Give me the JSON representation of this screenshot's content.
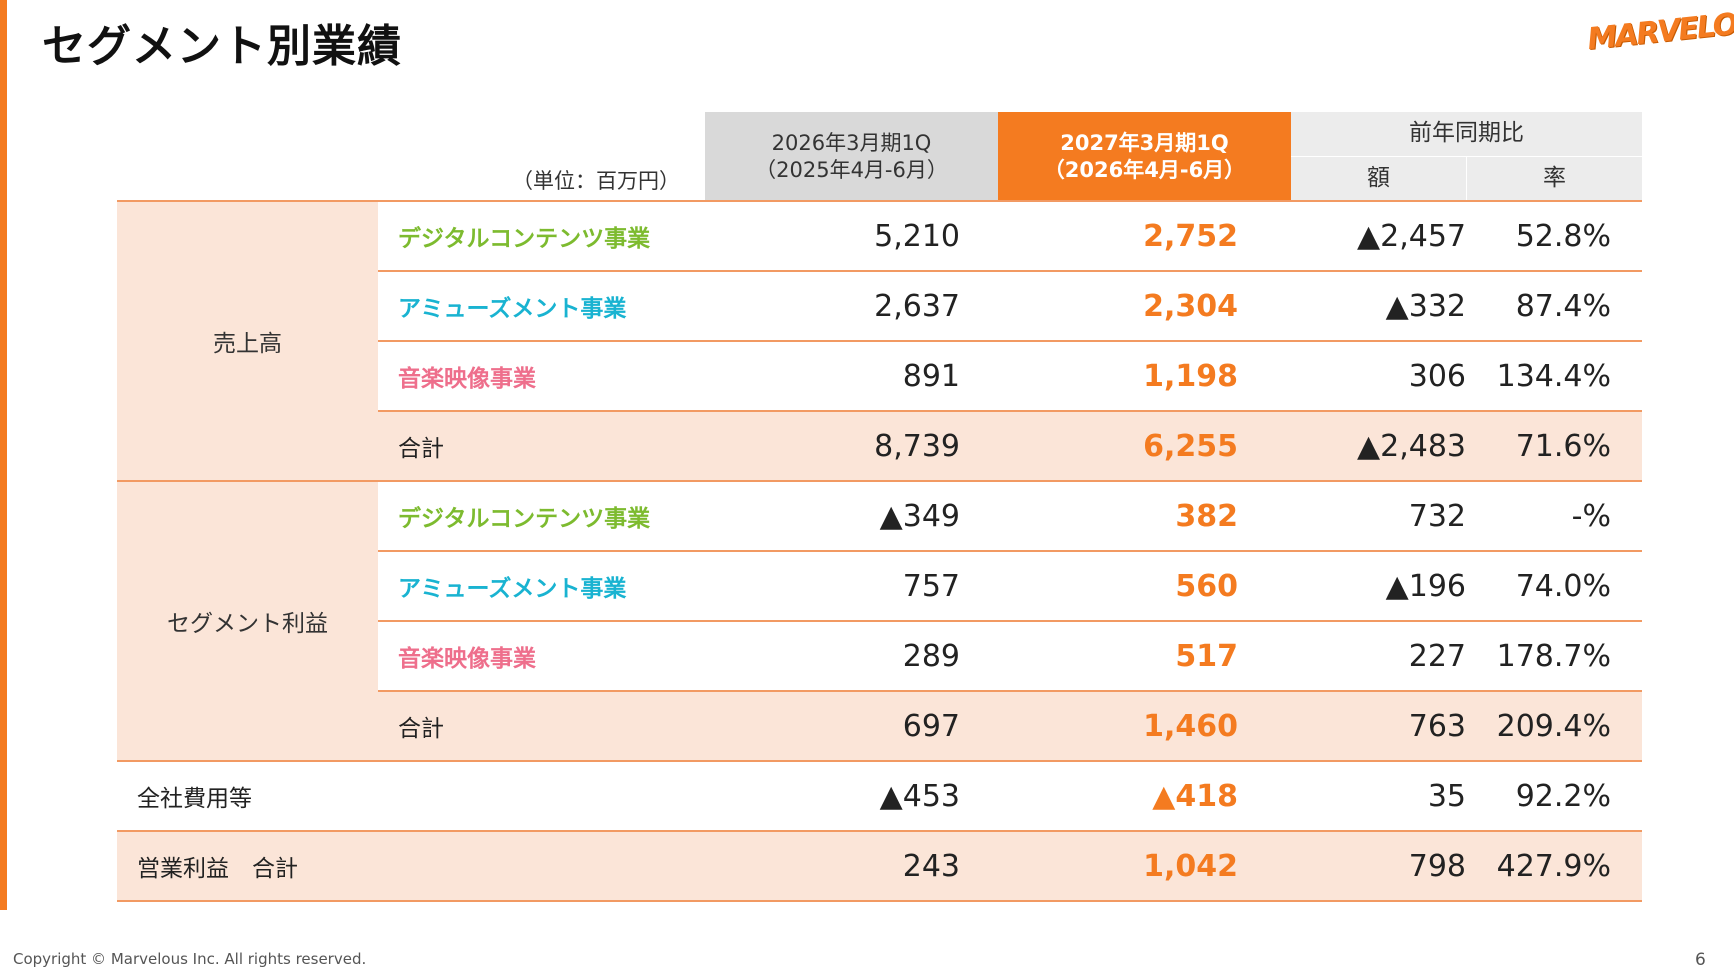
{
  "page_title": "セグメント別業績",
  "logo_text": "MARVELOUS!",
  "unit_label": "（単位：百万円）",
  "headers": {
    "prev_line1": "2026年3月期1Q",
    "prev_line2": "（2025年4月-6月）",
    "curr_line1": "2027年3月期1Q",
    "curr_line2": "（2026年4月-6月）",
    "yoy": "前年同期比",
    "amount": "額",
    "rate": "率"
  },
  "groups": {
    "sales": "売上高",
    "segment_profit": "セグメント利益"
  },
  "rows": [
    {
      "label": "デジタルコンテンツ事業",
      "prev": "5,210",
      "curr": "2,752",
      "amount": "▲2,457",
      "rate": "52.8%"
    },
    {
      "label": "アミューズメント事業",
      "prev": "2,637",
      "curr": "2,304",
      "amount": "▲332",
      "rate": "87.4%"
    },
    {
      "label": "音楽映像事業",
      "prev": "891",
      "curr": "1,198",
      "amount": "306",
      "rate": "134.4%"
    },
    {
      "label": "合計",
      "prev": "8,739",
      "curr": "6,255",
      "amount": "▲2,483",
      "rate": "71.6%"
    },
    {
      "label": "デジタルコンテンツ事業",
      "prev": "▲349",
      "curr": "382",
      "amount": "732",
      "rate": "-%"
    },
    {
      "label": "アミューズメント事業",
      "prev": "757",
      "curr": "560",
      "amount": "▲196",
      "rate": "74.0%"
    },
    {
      "label": "音楽映像事業",
      "prev": "289",
      "curr": "517",
      "amount": "227",
      "rate": "178.7%"
    },
    {
      "label": "合計",
      "prev": "697",
      "curr": "1,460",
      "amount": "763",
      "rate": "209.4%"
    },
    {
      "label": "全社費用等",
      "prev": "▲453",
      "curr": "▲418",
      "amount": "35",
      "rate": "92.2%"
    },
    {
      "label": "営業利益　合計",
      "prev": "243",
      "curr": "1,042",
      "amount": "798",
      "rate": "427.9%"
    }
  ],
  "colors": {
    "accent": "#f47b20",
    "peach": "#fbe5d8",
    "digital": "#7dbb2f",
    "amusement": "#19b3d1",
    "music": "#ee6f8c"
  },
  "footer": "Copyright © Marvelous Inc. All rights reserved.",
  "page_number": "6"
}
